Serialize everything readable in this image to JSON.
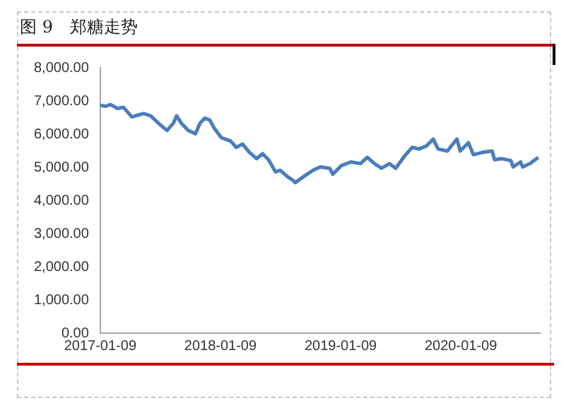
{
  "chart_data": {
    "type": "line",
    "title": "图 9　郑糖走势",
    "x": [
      "2017-01-09",
      "2017-01-26",
      "2017-02-09",
      "2017-03-03",
      "2017-03-20",
      "2017-04-15",
      "2017-05-06",
      "2017-05-21",
      "2017-06-11",
      "2017-07-09",
      "2017-07-31",
      "2017-08-19",
      "2017-08-29",
      "2017-09-12",
      "2017-10-03",
      "2017-10-25",
      "2017-11-08",
      "2017-11-22",
      "2017-12-07",
      "2017-12-21",
      "2018-01-12",
      "2018-02-09",
      "2018-02-26",
      "2018-03-17",
      "2018-04-07",
      "2018-04-29",
      "2018-05-17",
      "2018-06-04",
      "2018-06-25",
      "2018-07-09",
      "2018-07-31",
      "2018-08-18",
      "2018-08-24",
      "2018-09-19",
      "2018-10-17",
      "2018-11-08",
      "2018-12-07",
      "2018-12-16",
      "2019-01-11",
      "2019-02-09",
      "2019-03-10",
      "2019-03-31",
      "2019-04-22",
      "2019-05-13",
      "2019-06-06",
      "2019-06-25",
      "2019-07-23",
      "2019-08-14",
      "2019-09-04",
      "2019-09-26",
      "2019-10-17",
      "2019-11-01",
      "2019-11-29",
      "2019-12-28",
      "2020-01-07",
      "2020-02-01",
      "2020-02-16",
      "2020-03-15",
      "2020-04-13",
      "2020-04-20",
      "2020-05-12",
      "2020-06-09",
      "2020-06-16",
      "2020-07-08",
      "2020-07-15",
      "2020-08-06",
      "2020-08-31"
    ],
    "series": [
      {
        "color": "#4a7ebb",
        "values": [
          6870,
          6840,
          6890,
          6770,
          6810,
          6520,
          6580,
          6620,
          6550,
          6290,
          6110,
          6330,
          6550,
          6330,
          6110,
          6010,
          6330,
          6480,
          6430,
          6180,
          5890,
          5790,
          5600,
          5700,
          5450,
          5260,
          5410,
          5230,
          4860,
          4910,
          4720,
          4600,
          4540,
          4720,
          4910,
          5010,
          4970,
          4790,
          5050,
          5160,
          5110,
          5300,
          5110,
          4970,
          5110,
          4970,
          5350,
          5600,
          5550,
          5640,
          5850,
          5550,
          5490,
          5850,
          5490,
          5740,
          5380,
          5450,
          5490,
          5230,
          5260,
          5200,
          5010,
          5160,
          5010,
          5110,
          5300
        ]
      }
    ],
    "xlim": [
      "2017-01-09",
      "2020-09-05"
    ],
    "xticks": [
      "2017-01-09",
      "2018-01-09",
      "2019-01-09",
      "2020-01-09"
    ],
    "ylim": [
      0,
      8000
    ],
    "yticks": [
      {
        "value": 0,
        "label": "0.00"
      },
      {
        "value": 1000,
        "label": "1,000.00"
      },
      {
        "value": 2000,
        "label": "2,000.00"
      },
      {
        "value": 3000,
        "label": "3,000.00"
      },
      {
        "value": 4000,
        "label": "4,000.00"
      },
      {
        "value": 5000,
        "label": "5,000.00"
      },
      {
        "value": 6000,
        "label": "6,000.00"
      },
      {
        "value": 7000,
        "label": "7,000.00"
      },
      {
        "value": 8000,
        "label": "8,000.00"
      }
    ],
    "grid": false,
    "legend": false,
    "marker": "none",
    "line_style": "solid"
  }
}
